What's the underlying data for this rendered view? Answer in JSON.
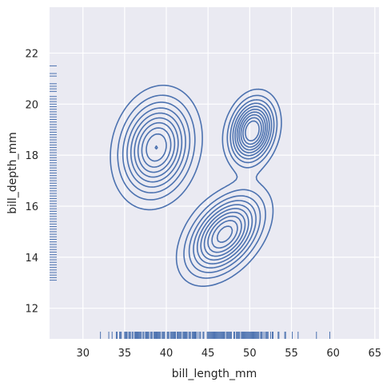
{
  "chart_data": {
    "type": "kde-contour",
    "xlabel": "bill_length_mm",
    "ylabel": "bill_depth_mm",
    "xlim": [
      26,
      65.5
    ],
    "ylim": [
      10.8,
      23.8
    ],
    "x_ticks": [
      30,
      35,
      40,
      45,
      50,
      55,
      60,
      65
    ],
    "y_ticks": [
      12,
      14,
      16,
      18,
      20,
      22
    ],
    "grid": true,
    "colors": {
      "background": "#EAEAF2",
      "grid": "#FFFFFF",
      "line": "#4C72B0",
      "text": "#262626"
    },
    "kde_components": [
      {
        "mx": 38.8,
        "my": 18.3,
        "sx": 2.6,
        "sy": 1.15,
        "rho": 0.15,
        "w": 0.44
      },
      {
        "mx": 47.0,
        "my": 14.9,
        "sx": 2.7,
        "sy": 0.95,
        "rho": 0.45,
        "w": 0.36
      },
      {
        "mx": 50.3,
        "my": 18.95,
        "sx": 1.6,
        "sy": 0.75,
        "rho": 0.2,
        "w": 0.2
      }
    ],
    "contour_levels": 10,
    "rug_x": [
      32.1,
      33.1,
      33.5,
      34.0,
      34.1,
      34.4,
      34.5,
      34.6,
      35.0,
      35.1,
      35.2,
      35.3,
      35.5,
      35.6,
      35.7,
      35.9,
      36.0,
      36.2,
      36.3,
      36.4,
      36.5,
      36.6,
      36.7,
      36.8,
      36.9,
      37.0,
      37.2,
      37.3,
      37.5,
      37.6,
      37.7,
      37.8,
      37.9,
      38.1,
      38.2,
      38.3,
      38.5,
      38.6,
      38.7,
      38.8,
      38.9,
      39.0,
      39.1,
      39.2,
      39.3,
      39.5,
      39.6,
      39.7,
      39.8,
      40.1,
      40.2,
      40.3,
      40.5,
      40.6,
      40.7,
      40.8,
      40.9,
      41.0,
      41.1,
      41.3,
      41.4,
      41.5,
      41.6,
      41.7,
      41.8,
      42.0,
      42.1,
      42.2,
      42.3,
      42.4,
      42.5,
      42.7,
      42.8,
      42.9,
      43.1,
      43.2,
      43.3,
      43.4,
      43.5,
      43.6,
      43.8,
      44.0,
      44.1,
      44.4,
      44.5,
      44.9,
      45.0,
      45.1,
      45.2,
      45.3,
      45.4,
      45.5,
      45.6,
      45.7,
      45.8,
      45.9,
      46.0,
      46.1,
      46.2,
      46.3,
      46.4,
      46.5,
      46.6,
      46.7,
      46.8,
      46.9,
      47.0,
      47.2,
      47.3,
      47.4,
      47.5,
      47.6,
      47.7,
      47.8,
      48.1,
      48.2,
      48.4,
      48.5,
      48.6,
      48.7,
      48.8,
      49.0,
      49.1,
      49.2,
      49.3,
      49.4,
      49.5,
      49.6,
      49.7,
      49.8,
      49.9,
      50.0,
      50.1,
      50.2,
      50.3,
      50.4,
      50.5,
      50.6,
      50.7,
      50.8,
      50.9,
      51.0,
      51.1,
      51.3,
      51.4,
      51.5,
      51.7,
      51.9,
      52.0,
      52.1,
      52.2,
      52.5,
      52.7,
      52.8,
      53.4,
      53.5,
      54.2,
      54.3,
      55.1,
      55.8,
      58.0,
      59.6
    ],
    "rug_y": [
      13.1,
      13.2,
      13.3,
      13.4,
      13.5,
      13.6,
      13.7,
      13.8,
      13.9,
      14.0,
      14.1,
      14.2,
      14.3,
      14.4,
      14.5,
      14.6,
      14.7,
      14.8,
      14.9,
      15.0,
      15.1,
      15.2,
      15.3,
      15.4,
      15.5,
      15.6,
      15.7,
      15.8,
      15.9,
      16.0,
      16.1,
      16.2,
      16.3,
      16.4,
      16.5,
      16.6,
      16.7,
      16.8,
      16.9,
      17.0,
      17.1,
      17.2,
      17.3,
      17.4,
      17.5,
      17.6,
      17.7,
      17.8,
      17.9,
      18.0,
      18.1,
      18.2,
      18.3,
      18.4,
      18.5,
      18.6,
      18.7,
      18.8,
      18.9,
      19.0,
      19.1,
      19.2,
      19.3,
      19.4,
      19.5,
      19.6,
      19.7,
      19.8,
      19.9,
      20.0,
      20.1,
      20.2,
      20.3,
      20.5,
      20.6,
      20.7,
      20.8,
      21.1,
      21.2,
      21.5
    ]
  }
}
